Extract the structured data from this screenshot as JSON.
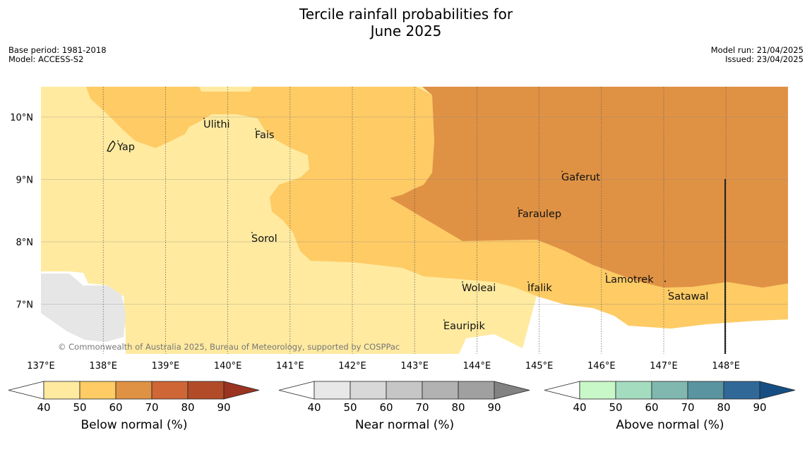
{
  "title": {
    "line1": "Tercile rainfall probabilities for",
    "line2": "June 2025"
  },
  "meta_left": {
    "base_period": "Base period: 1981-2018",
    "model": "Model: ACCESS-S2"
  },
  "meta_right": {
    "model_run": "Model run: 21/04/2025",
    "issued": "Issued: 23/04/2025"
  },
  "copyright": "© Commonwealth of Australia 2025, Bureau of Meteorology, supported by COSPPac",
  "map": {
    "lon_range": [
      137,
      149
    ],
    "lat_range": [
      6.3,
      10.5
    ],
    "lon_ticks": [
      "137°E",
      "138°E",
      "139°E",
      "140°E",
      "141°E",
      "142°E",
      "143°E",
      "144°E",
      "145°E",
      "146°E",
      "147°E",
      "148°E"
    ],
    "lat_ticks": [
      "10°N",
      "9°N",
      "8°N",
      "7°N"
    ],
    "places": [
      {
        "name": "Yap"
      },
      {
        "name": "Ulithi"
      },
      {
        "name": "Fais"
      },
      {
        "name": "Gaferut"
      },
      {
        "name": "Faraulep"
      },
      {
        "name": "Sorol"
      },
      {
        "name": "Lamotrek"
      },
      {
        "name": "Woleai"
      },
      {
        "name": "Ifalik"
      },
      {
        "name": "Satawal"
      },
      {
        "name": "Eauripik"
      }
    ]
  },
  "colorbars": [
    {
      "label": "Below normal (%)",
      "colors": [
        "#ffeaa0",
        "#fecb65",
        "#e09244",
        "#cf6636",
        "#b24c28",
        "#9a3420"
      ],
      "ticks": [
        "40",
        "50",
        "60",
        "70",
        "80",
        "90"
      ]
    },
    {
      "label": "Near normal (%)",
      "colors": [
        "#e8e8e8",
        "#d8d8d8",
        "#c6c6c6",
        "#b2b2b2",
        "#a0a0a0",
        "#828282"
      ],
      "ticks": [
        "40",
        "50",
        "60",
        "70",
        "80",
        "90"
      ]
    },
    {
      "label": "Above normal (%)",
      "colors": [
        "#c8f7c8",
        "#a4dcc0",
        "#80b8b0",
        "#5a94a0",
        "#306898",
        "#164e84"
      ],
      "ticks": [
        "40",
        "50",
        "60",
        "70",
        "80",
        "90"
      ]
    }
  ]
}
